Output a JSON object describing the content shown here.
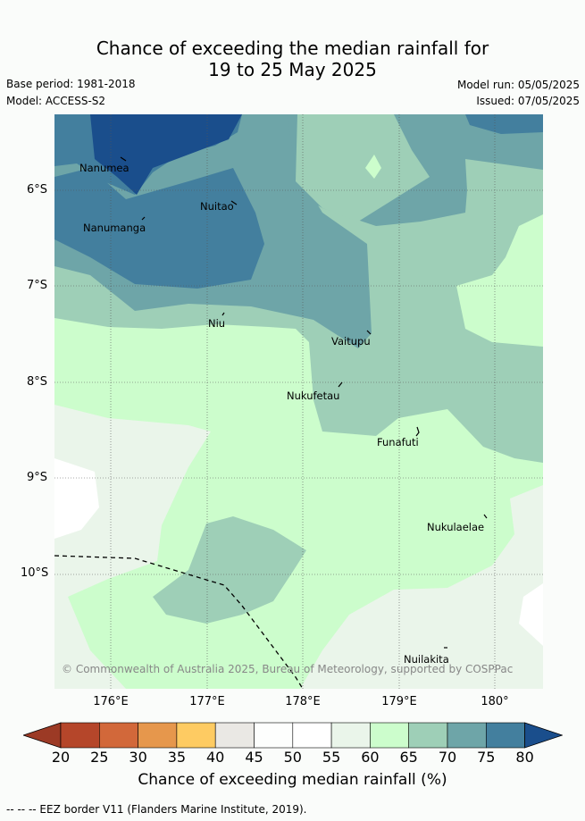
{
  "title_line1": "Chance of exceeding the median rainfall for",
  "title_line2": "19 to 25 May 2025",
  "base_period": "Base period: 1981-2018",
  "model": "Model: ACCESS-S2",
  "model_run": "Model run: 05/05/2025",
  "issued": "Issued: 07/05/2025",
  "y_ticks": [
    "6°S",
    "7°S",
    "8°S",
    "9°S",
    "10°S"
  ],
  "x_ticks": [
    "176°E",
    "177°E",
    "178°E",
    "179°E",
    "180°"
  ],
  "places": {
    "nanumea": "Nanumea",
    "nuitao": "Nuitao",
    "nanumanga": "Nanumanga",
    "niu": "Niu",
    "vaitupu": "Vaitupu",
    "nukufetau": "Nukufetau",
    "funafuti": "Funafuti",
    "nukulaelae": "Nukulaelae",
    "nuilakita": "Nuilakita"
  },
  "copyright": "© Commonwealth of Australia 2025, Bureau of Meteorology, supported by COSPPac",
  "colorbar": {
    "ticks": [
      "20",
      "25",
      "30",
      "35",
      "40",
      "45",
      "50",
      "55",
      "60",
      "65",
      "70",
      "75",
      "80"
    ],
    "colors": [
      "#b5462a",
      "#d2683a",
      "#e6974c",
      "#fecb62",
      "#eae8e4",
      "#fdfefd",
      "#ffffff",
      "#eaf5ea",
      "#ccfdcc",
      "#9ecfb7",
      "#6ea5a8",
      "#437f9e"
    ],
    "under_color": "#9c3a25",
    "over_color": "#1a4e8c",
    "label": "Chance of exceeding median rainfall (%)"
  },
  "eez_note": "-- --  -- EEZ border V11 (Flanders Marine Institute, 2019)."
}
